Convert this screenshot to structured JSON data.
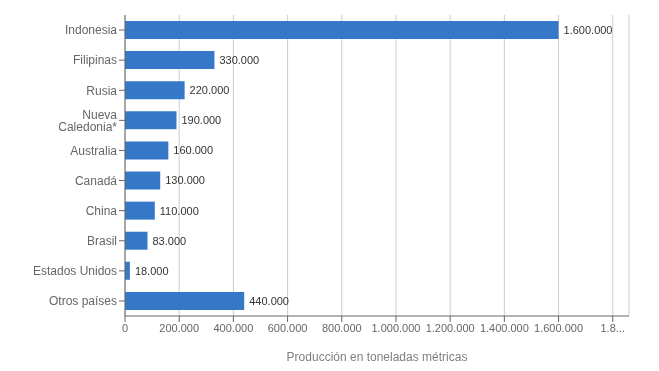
{
  "chart_data": {
    "type": "bar",
    "orientation": "horizontal",
    "categories": [
      "Indonesia",
      "Filipinas",
      "Rusia",
      "Nueva Caledonia*",
      "Australia",
      "Canadá",
      "China",
      "Brasil",
      "Estados Unidos",
      "Otros países"
    ],
    "values": [
      1600000,
      330000,
      220000,
      190000,
      160000,
      130000,
      110000,
      83000,
      18000,
      440000
    ],
    "value_labels": [
      "1.600.000",
      "330.000",
      "220.000",
      "190.000",
      "160.000",
      "130.000",
      "110.000",
      "83.000",
      "18.000",
      "440.000"
    ],
    "data_labels": true,
    "color": "#3578c8",
    "xlabel": "Producción en toneladas métricas",
    "xlim": [
      0,
      1860000
    ],
    "xticks": [
      0,
      {
        "value": 200000,
        "label": "200.000"
      },
      {
        "value": 400000,
        "label": "400.000"
      },
      {
        "value": 600000,
        "label": "600.000"
      },
      {
        "value": 800000,
        "label": "800.000"
      },
      {
        "value": 1000000,
        "label": "1.000.000"
      },
      {
        "value": 1200000,
        "label": "1.200.000"
      },
      {
        "value": 1400000,
        "label": "1.400.000"
      },
      {
        "value": 1600000,
        "label": "1.600.000"
      },
      {
        "value": 1800000,
        "label": "1.8..."
      }
    ],
    "grid": true
  }
}
